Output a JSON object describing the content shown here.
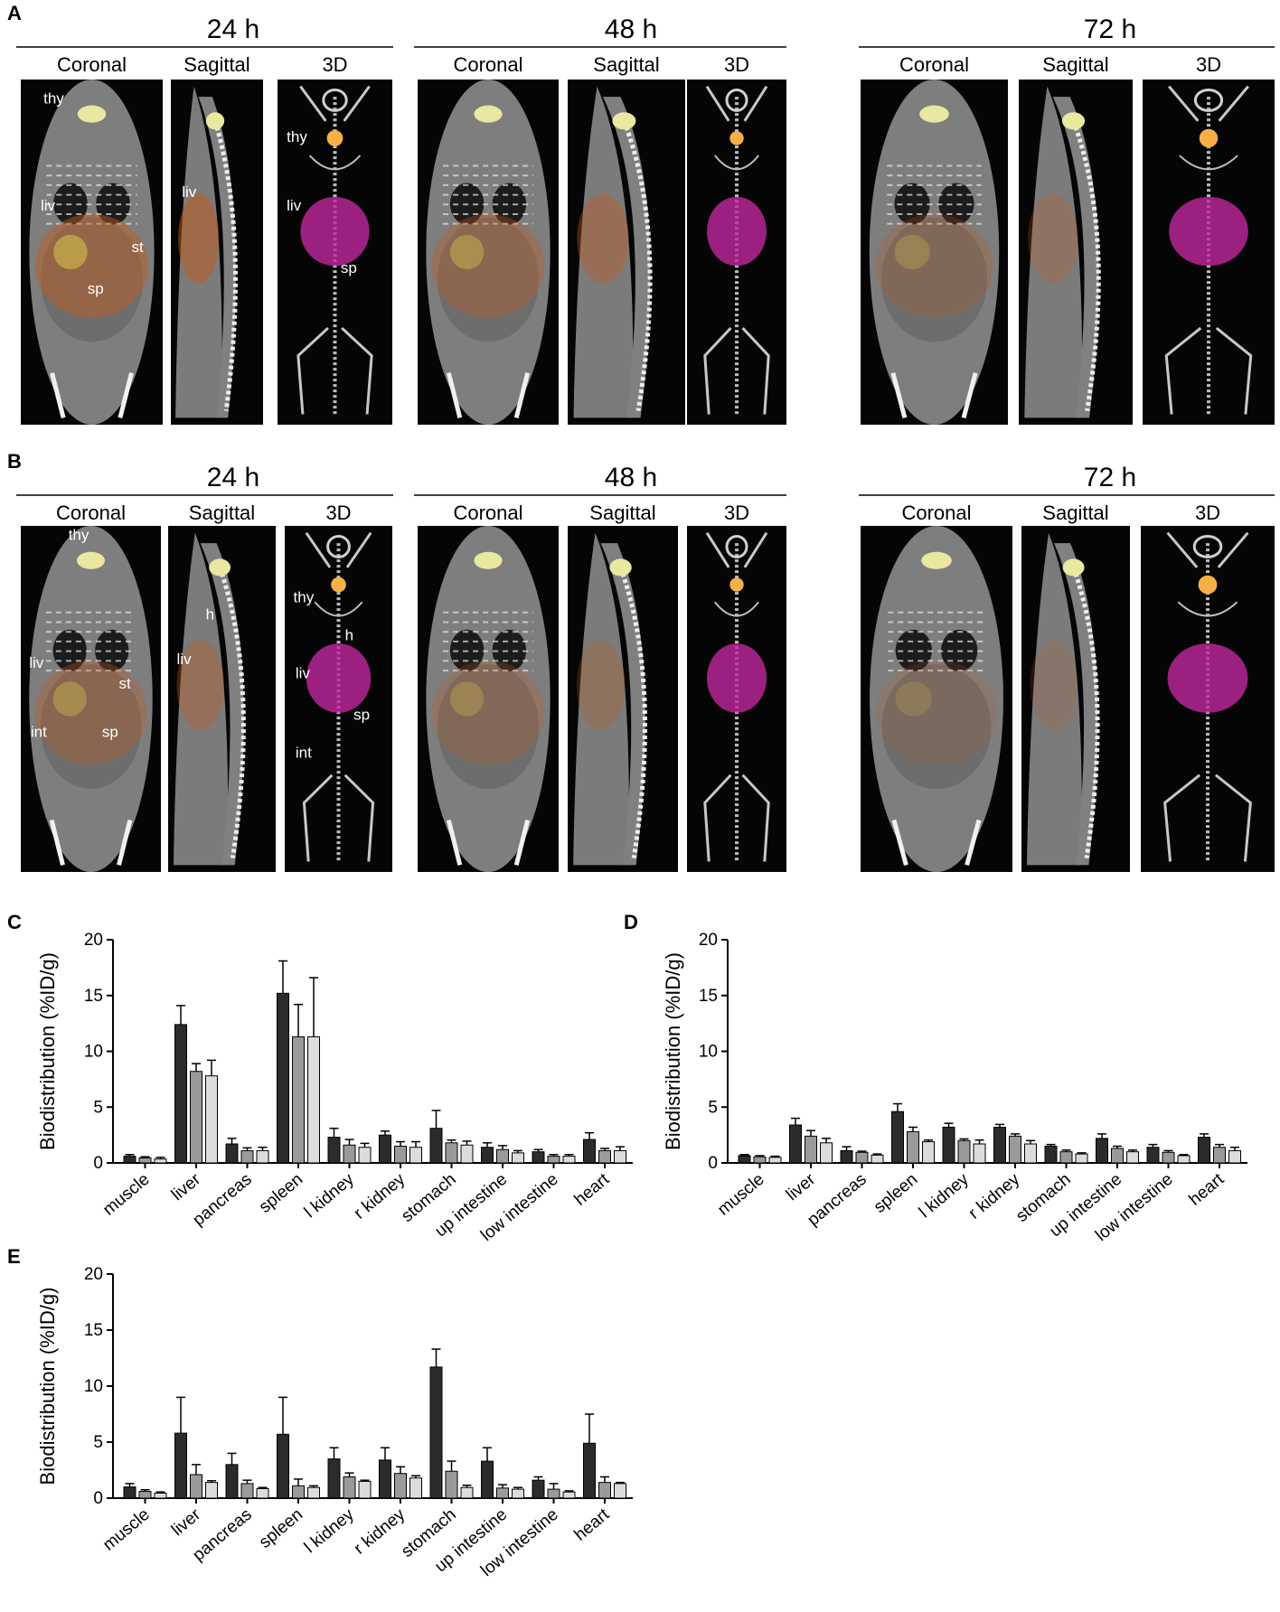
{
  "imaging": {
    "panels": [
      {
        "letter": "A",
        "timepoints": [
          {
            "label": "24 h",
            "views": [
              {
                "label": "Coronal",
                "organs": [
                  "thy",
                  "liv",
                  "st",
                  "sp"
                ]
              },
              {
                "label": "Sagittal",
                "organs": [
                  "liv"
                ]
              },
              {
                "label": "3D",
                "organs": [
                  "thy",
                  "liv",
                  "sp"
                ]
              }
            ]
          },
          {
            "label": "48 h",
            "views": [
              {
                "label": "Coronal",
                "organs": []
              },
              {
                "label": "Sagittal",
                "organs": []
              },
              {
                "label": "3D",
                "organs": []
              }
            ]
          },
          {
            "label": "72 h",
            "views": [
              {
                "label": "Coronal",
                "organs": []
              },
              {
                "label": "Sagittal",
                "organs": []
              },
              {
                "label": "3D",
                "organs": []
              }
            ]
          }
        ]
      },
      {
        "letter": "B",
        "timepoints": [
          {
            "label": "24 h",
            "views": [
              {
                "label": "Coronal",
                "organs": [
                  "thy",
                  "liv",
                  "st",
                  "int",
                  "sp"
                ]
              },
              {
                "label": "Sagittal",
                "organs": [
                  "h",
                  "liv"
                ]
              },
              {
                "label": "3D",
                "organs": [
                  "thy",
                  "h",
                  "liv",
                  "sp",
                  "int"
                ]
              }
            ]
          },
          {
            "label": "48 h",
            "views": [
              {
                "label": "Coronal",
                "organs": []
              },
              {
                "label": "Sagittal",
                "organs": []
              },
              {
                "label": "3D",
                "organs": []
              }
            ]
          },
          {
            "label": "72 h",
            "views": [
              {
                "label": "Coronal",
                "organs": []
              },
              {
                "label": "Sagittal",
                "organs": []
              },
              {
                "label": "3D",
                "organs": []
              }
            ]
          }
        ]
      }
    ]
  },
  "chart_data": [
    {
      "panel": "C",
      "type": "bar",
      "ylabel": "Biodistribution (%ID/g)",
      "ylim": [
        0,
        20
      ],
      "yticks": [
        0,
        5,
        10,
        15,
        20
      ],
      "categories": [
        "muscle",
        "liver",
        "pancreas",
        "spleen",
        "l kidney",
        "r kidney",
        "stomach",
        "up intestine",
        "low intestine",
        "heart"
      ],
      "series": [
        {
          "color": "#2b2b2b",
          "values": [
            0.6,
            12.4,
            1.7,
            15.2,
            2.3,
            2.5,
            3.1,
            1.4,
            1.0,
            2.1
          ],
          "errors": [
            0.15,
            1.7,
            0.5,
            2.9,
            0.8,
            0.35,
            1.6,
            0.4,
            0.2,
            0.6
          ]
        },
        {
          "color": "#9a9a9a",
          "values": [
            0.45,
            8.2,
            1.1,
            11.3,
            1.6,
            1.5,
            1.8,
            1.2,
            0.6,
            1.1
          ],
          "errors": [
            0.1,
            0.7,
            0.25,
            2.9,
            0.5,
            0.4,
            0.25,
            0.35,
            0.15,
            0.2
          ]
        },
        {
          "color": "#dcdcdc",
          "values": [
            0.35,
            7.8,
            1.1,
            11.3,
            1.4,
            1.4,
            1.6,
            0.9,
            0.6,
            1.1
          ],
          "errors": [
            0.15,
            1.4,
            0.3,
            5.3,
            0.35,
            0.5,
            0.35,
            0.2,
            0.15,
            0.35
          ]
        }
      ]
    },
    {
      "panel": "D",
      "type": "bar",
      "ylabel": "Biodistribution (%ID/g)",
      "ylim": [
        0,
        20
      ],
      "yticks": [
        0,
        5,
        10,
        15,
        20
      ],
      "categories": [
        "muscle",
        "liver",
        "pancreas",
        "spleen",
        "l kidney",
        "r kidney",
        "stomach",
        "up intestine",
        "low intestine",
        "heart"
      ],
      "series": [
        {
          "color": "#2b2b2b",
          "values": [
            0.65,
            3.4,
            1.1,
            4.6,
            3.2,
            3.2,
            1.5,
            2.2,
            1.4,
            2.3
          ],
          "errors": [
            0.1,
            0.6,
            0.35,
            0.7,
            0.35,
            0.25,
            0.15,
            0.4,
            0.25,
            0.3
          ]
        },
        {
          "color": "#9a9a9a",
          "values": [
            0.55,
            2.4,
            0.95,
            2.8,
            2.0,
            2.4,
            1.0,
            1.3,
            0.95,
            1.4
          ],
          "errors": [
            0.1,
            0.5,
            0.1,
            0.4,
            0.15,
            0.2,
            0.15,
            0.2,
            0.15,
            0.25
          ]
        },
        {
          "color": "#dcdcdc",
          "values": [
            0.5,
            1.8,
            0.7,
            1.9,
            1.7,
            1.7,
            0.8,
            1.0,
            0.65,
            1.1
          ],
          "errors": [
            0.1,
            0.4,
            0.1,
            0.15,
            0.35,
            0.3,
            0.1,
            0.15,
            0.1,
            0.3
          ]
        }
      ]
    },
    {
      "panel": "E",
      "type": "bar",
      "ylabel": "Biodistribution (%ID/g)",
      "ylim": [
        0,
        20
      ],
      "yticks": [
        0,
        5,
        10,
        15,
        20
      ],
      "categories": [
        "muscle",
        "liver",
        "pancreas",
        "spleen",
        "l kidney",
        "r kidney",
        "stomach",
        "up intestine",
        "low intestine",
        "heart"
      ],
      "series": [
        {
          "color": "#2b2b2b",
          "values": [
            1.0,
            5.8,
            3.0,
            5.7,
            3.5,
            3.4,
            11.7,
            3.3,
            1.6,
            4.9
          ],
          "errors": [
            0.3,
            3.2,
            1.0,
            3.3,
            1.0,
            1.1,
            1.6,
            1.2,
            0.3,
            2.6
          ]
        },
        {
          "color": "#9a9a9a",
          "values": [
            0.6,
            2.1,
            1.3,
            1.1,
            1.9,
            2.2,
            2.4,
            0.9,
            0.8,
            1.4
          ],
          "errors": [
            0.15,
            0.9,
            0.3,
            0.6,
            0.35,
            0.6,
            0.9,
            0.3,
            0.5,
            0.5
          ]
        },
        {
          "color": "#dcdcdc",
          "values": [
            0.45,
            1.4,
            0.85,
            0.95,
            1.5,
            1.8,
            0.95,
            0.8,
            0.55,
            1.3
          ],
          "errors": [
            0.1,
            0.15,
            0.1,
            0.15,
            0.1,
            0.2,
            0.2,
            0.15,
            0.1,
            0.1
          ]
        }
      ]
    }
  ]
}
